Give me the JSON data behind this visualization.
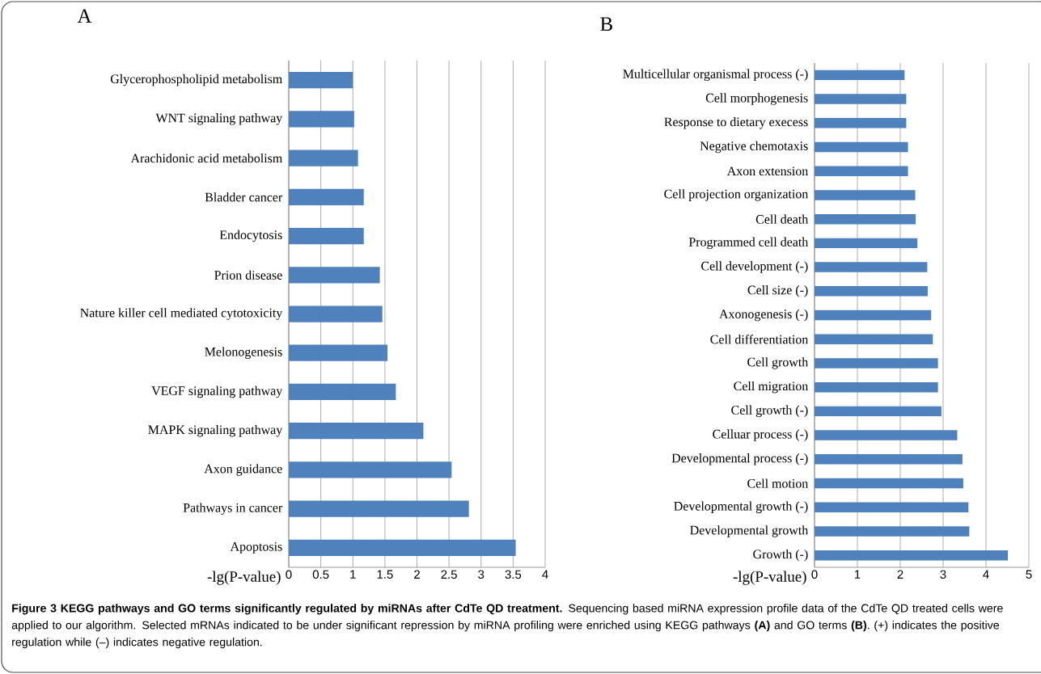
{
  "chart_data": [
    {
      "type": "bar",
      "orientation": "horizontal",
      "title": "A",
      "xlabel": "-lg(P-value)",
      "color": "#4f81bd",
      "grid": "x",
      "categories": [
        "Glycerophospholipid metabolism",
        "WNT signaling pathway",
        "Arachidonic acid metabolism",
        "Bladder cancer",
        "Endocytosis",
        "Prion disease",
        "Nature killer cell mediated cytotoxicity",
        "Melonogenesis",
        "VEGF signaling pathway",
        "MAPK signaling pathway",
        "Axon guidance",
        "Pathways in cancer",
        "Apoptosis"
      ],
      "values": [
        1.0,
        1.02,
        1.08,
        1.17,
        1.17,
        1.42,
        1.46,
        1.54,
        1.67,
        2.1,
        2.54,
        2.81,
        3.54
      ],
      "xlim": [
        0,
        4
      ],
      "xticks": [
        0,
        0.5,
        1,
        1.5,
        2,
        2.5,
        3,
        3.5,
        4
      ],
      "annotations": [
        "**Figure 3 KEGG pathways and GO terms significantly regulated by miRNAs after CdTe QD treatment.** Sequencing based miRNA expression profile data of the CdTe QD treated cells were applied to our algorithm. Selected mRNAs indicated to be under significant repression by miRNA profiling were enriched using KEGG pathways **(A)** and GO terms **(B)**. (+) indicates the positive regulation while (–) indicates negative regulation."
      ]
    },
    {
      "type": "bar",
      "orientation": "horizontal",
      "title": "B",
      "xlabel": "-lg(P-value)",
      "color": "#4f81bd",
      "grid": "x",
      "categories": [
        "Multicellular organismal process (-)",
        "Cell morphogenesis",
        "Response to dietary execess",
        "Negative chemotaxis",
        "Axon extension",
        "Cell projection organization",
        "Cell death",
        "Programmed cell death",
        "Cell development (-)",
        "Cell size (-)",
        "Axonogenesis (-)",
        "Cell differentiation",
        "Cell growth",
        "Cell migration",
        "Cell growth (-)",
        "Celluar process (-)",
        "Developmental process (-)",
        "Cell motion",
        "Developmental growth (-)",
        "Developmental growth",
        "Growth (-)"
      ],
      "values": [
        2.1,
        2.14,
        2.14,
        2.18,
        2.18,
        2.35,
        2.36,
        2.4,
        2.63,
        2.64,
        2.72,
        2.76,
        2.88,
        2.88,
        2.96,
        3.33,
        3.45,
        3.47,
        3.59,
        3.61,
        4.51
      ],
      "xlim": [
        0,
        5
      ],
      "xticks": [
        0,
        1,
        2,
        3,
        4,
        5
      ]
    }
  ]
}
